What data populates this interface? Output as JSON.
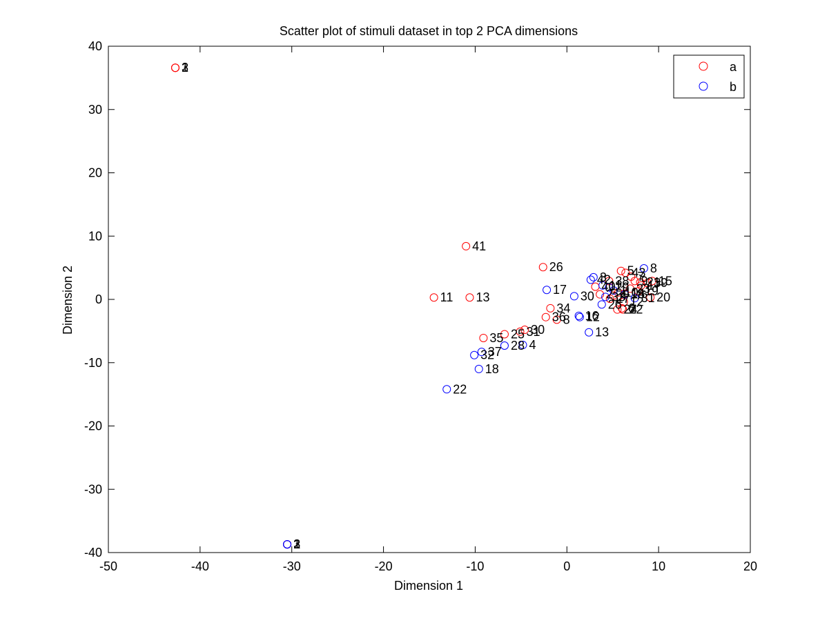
{
  "chart_data": {
    "type": "scatter",
    "title": "Scatter plot of stimuli dataset in top 2 PCA dimensions",
    "xlabel": "Dimension 1",
    "ylabel": "Dimension 2",
    "xlim": [
      -50,
      20
    ],
    "ylim": [
      -40,
      40
    ],
    "xticks": [
      -50,
      -40,
      -30,
      -20,
      -10,
      0,
      10,
      20
    ],
    "yticks": [
      -40,
      -30,
      -20,
      -10,
      0,
      10,
      20,
      30,
      40
    ],
    "xtick_labels": [
      "-50",
      "-40",
      "-30",
      "-20",
      "-10",
      "0",
      "10",
      "20"
    ],
    "ytick_labels": [
      "-40",
      "-30",
      "-20",
      "-10",
      "0",
      "10",
      "20",
      "30",
      "40"
    ],
    "grid": false,
    "legend_position": "top-right",
    "marker": "open-circle",
    "series": [
      {
        "name": "a",
        "color": "#ff0000",
        "points": [
          {
            "x": -42.7,
            "y": 36.6,
            "label": "1"
          },
          {
            "x": -42.7,
            "y": 36.6,
            "label": "2"
          },
          {
            "x": -42.7,
            "y": 36.6,
            "label": "3"
          },
          {
            "x": -11.0,
            "y": 8.4,
            "label": "41"
          },
          {
            "x": -14.5,
            "y": 0.3,
            "label": "11"
          },
          {
            "x": -10.6,
            "y": 0.3,
            "label": "13"
          },
          {
            "x": -2.6,
            "y": 5.1,
            "label": "26"
          },
          {
            "x": -1.8,
            "y": -1.4,
            "label": "34"
          },
          {
            "x": -2.3,
            "y": -2.8,
            "label": "36"
          },
          {
            "x": -1.1,
            "y": -3.2,
            "label": "8"
          },
          {
            "x": -9.1,
            "y": -6.1,
            "label": "35"
          },
          {
            "x": -6.8,
            "y": -5.5,
            "label": "25"
          },
          {
            "x": -5.1,
            "y": -5.1,
            "label": "31"
          },
          {
            "x": -4.6,
            "y": -4.8,
            "label": "30"
          },
          {
            "x": 3.1,
            "y": 2.0,
            "label": "40"
          },
          {
            "x": 3.6,
            "y": 0.8,
            "label": "2"
          },
          {
            "x": 4.6,
            "y": 2.9,
            "label": "38"
          },
          {
            "x": 5.9,
            "y": 4.5,
            "label": "5"
          },
          {
            "x": 6.4,
            "y": 4.2,
            "label": "43"
          },
          {
            "x": 7.0,
            "y": 3.6,
            "label": "7"
          },
          {
            "x": 7.4,
            "y": 2.9,
            "label": "9"
          },
          {
            "x": 8.0,
            "y": 2.7,
            "label": "21"
          },
          {
            "x": 9.3,
            "y": 2.9,
            "label": "15"
          },
          {
            "x": 8.8,
            "y": 2.6,
            "label": "39"
          },
          {
            "x": 8.1,
            "y": 2.2,
            "label": "17"
          },
          {
            "x": 6.9,
            "y": 1.7,
            "label": "23"
          },
          {
            "x": 7.8,
            "y": 1.3,
            "label": "19"
          },
          {
            "x": 6.3,
            "y": 0.9,
            "label": "14"
          },
          {
            "x": 5.6,
            "y": 1.1,
            "label": "10"
          },
          {
            "x": 5.1,
            "y": 0.6,
            "label": "4"
          },
          {
            "x": 9.1,
            "y": 0.3,
            "label": "20"
          },
          {
            "x": 6.2,
            "y": -0.4,
            "label": "12"
          },
          {
            "x": 6.0,
            "y": -1.4,
            "label": "6"
          },
          {
            "x": 5.5,
            "y": -1.6,
            "label": "24"
          },
          {
            "x": 6.1,
            "y": -1.6,
            "label": "22"
          },
          {
            "x": 4.7,
            "y": 0.1,
            "label": "27"
          },
          {
            "x": -30.5,
            "y": -38.7,
            "label": "1"
          },
          {
            "x": -30.5,
            "y": -38.7,
            "label": "2"
          },
          {
            "x": -30.5,
            "y": -38.7,
            "label": "3"
          }
        ]
      },
      {
        "name": "b",
        "color": "#0000ff",
        "points": [
          {
            "x": -30.5,
            "y": -38.7,
            "label": "1"
          },
          {
            "x": -30.5,
            "y": -38.7,
            "label": "2"
          },
          {
            "x": -30.5,
            "y": -38.7,
            "label": "3"
          },
          {
            "x": -2.2,
            "y": 1.5,
            "label": "17"
          },
          {
            "x": 0.8,
            "y": 0.5,
            "label": "30"
          },
          {
            "x": 1.3,
            "y": -2.6,
            "label": "16"
          },
          {
            "x": 1.4,
            "y": -2.8,
            "label": "12"
          },
          {
            "x": 2.4,
            "y": -5.2,
            "label": "13"
          },
          {
            "x": -4.8,
            "y": -7.2,
            "label": "4"
          },
          {
            "x": -6.8,
            "y": -7.3,
            "label": "28"
          },
          {
            "x": -9.3,
            "y": -8.3,
            "label": "37"
          },
          {
            "x": -10.1,
            "y": -8.8,
            "label": "32"
          },
          {
            "x": -9.6,
            "y": -11.0,
            "label": "18"
          },
          {
            "x": -13.1,
            "y": -14.2,
            "label": "22"
          },
          {
            "x": 2.6,
            "y": 3.1,
            "label": "42"
          },
          {
            "x": 2.9,
            "y": 3.5,
            "label": "3"
          },
          {
            "x": 3.9,
            "y": 2.2,
            "label": "11"
          },
          {
            "x": 4.6,
            "y": 1.9,
            "label": "29"
          },
          {
            "x": 8.4,
            "y": 4.9,
            "label": "8"
          },
          {
            "x": 4.2,
            "y": 0.4,
            "label": "33"
          },
          {
            "x": 3.8,
            "y": -0.8,
            "label": "26"
          },
          {
            "x": 6.3,
            "y": 0.8,
            "label": "18"
          },
          {
            "x": 7.4,
            "y": 0.2,
            "label": "31"
          },
          {
            "x": 5.1,
            "y": 1.4,
            "label": "1"
          }
        ]
      }
    ]
  }
}
